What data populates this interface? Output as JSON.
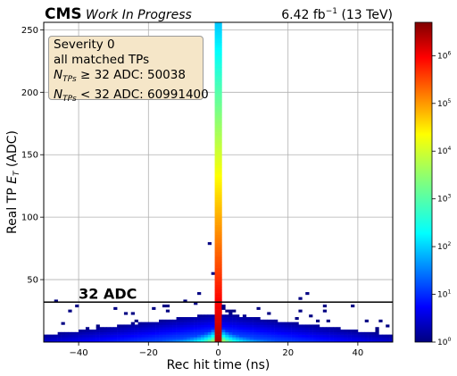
{
  "header": {
    "experiment": "CMS",
    "status": "Work In Progress",
    "lumi_value": "6.42",
    "lumi_unit": "fb",
    "lumi_exp": "−1",
    "energy": "(13 TeV)"
  },
  "stats": {
    "line1": "Severity 0",
    "line2": "all matched TPs",
    "n_symbol": "N",
    "n_sub": "TPs",
    "line3_rest": " ≥ 32 ADC: 50038",
    "line4_rest": " < 32 ADC: 60991400"
  },
  "threshold": {
    "label": "32 ADC",
    "value": 32
  },
  "chart_data": {
    "type": "heatmap",
    "xlabel": "Rec hit time (ns)",
    "ylabel_main": "Real TP ",
    "ylabel_var": "E",
    "ylabel_sub": "T",
    "ylabel_unit": " (ADC)",
    "xlim": [
      -50,
      50
    ],
    "ylim": [
      0,
      256
    ],
    "xticks": [
      -40,
      -20,
      0,
      20,
      40
    ],
    "yticks": [
      50,
      100,
      150,
      200,
      250
    ],
    "grid": true,
    "colorbar": {
      "scale": "log",
      "range": [
        1,
        5000000
      ],
      "ticks": [
        {
          "base": "10",
          "exp": "0",
          "value": 1
        },
        {
          "base": "10",
          "exp": "1",
          "value": 10
        },
        {
          "base": "10",
          "exp": "2",
          "value": 100
        },
        {
          "base": "10",
          "exp": "3",
          "value": 1000
        },
        {
          "base": "10",
          "exp": "4",
          "value": 10000
        },
        {
          "base": "10",
          "exp": "5",
          "value": 100000
        },
        {
          "base": "10",
          "exp": "6",
          "value": 1000000
        }
      ],
      "colormap": "jet"
    }
  }
}
